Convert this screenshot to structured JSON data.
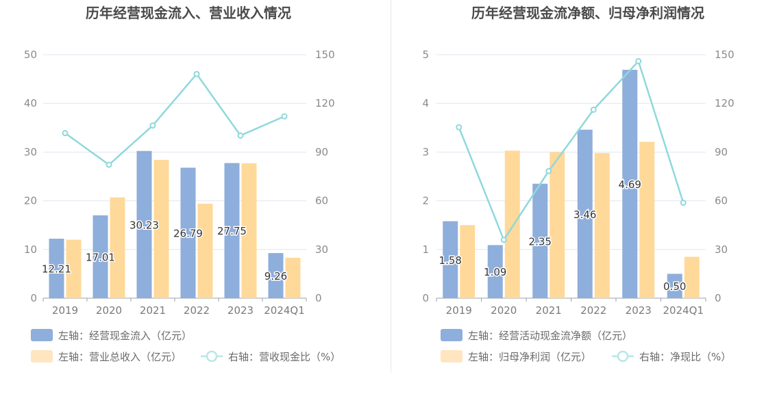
{
  "charts": [
    {
      "title": "历年经营现金流入、营业收入情况",
      "chart_data": {
        "type": "bar",
        "categories": [
          "2019",
          "2020",
          "2021",
          "2022",
          "2023",
          "2024Q1"
        ],
        "series": [
          {
            "name": "左轴：经营现金流入（亿元）",
            "axis": "left",
            "type": "bar",
            "color": "#8eaedb",
            "values": [
              12.21,
              17.01,
              30.23,
              26.79,
              27.75,
              9.26
            ],
            "labels": [
              "12.21",
              "17.01",
              "30.23",
              "26.79",
              "27.75",
              "9.26"
            ]
          },
          {
            "name": "左轴：营业总收入（亿元）",
            "axis": "left",
            "type": "bar",
            "color": "#ffd99a",
            "values": [
              12.0,
              20.7,
              28.4,
              19.4,
              27.7,
              8.3
            ]
          },
          {
            "name": "右轴：营收现金比（%）",
            "axis": "right",
            "type": "line",
            "color": "#8fd8dc",
            "values": [
              101.7,
              82.2,
              106.4,
              138.1,
              100.2,
              112.0
            ]
          }
        ],
        "left_axis": {
          "min": 0,
          "max": 50,
          "ticks": [
            "0",
            "10",
            "20",
            "30",
            "40",
            "50"
          ]
        },
        "right_axis": {
          "min": 0,
          "max": 150,
          "ticks": [
            "0",
            "30",
            "60",
            "90",
            "120",
            "150"
          ]
        },
        "grid": true,
        "legend_position": "bottom-left"
      }
    },
    {
      "title": "历年经营现金流净额、归母净利润情况",
      "chart_data": {
        "type": "bar",
        "categories": [
          "2019",
          "2020",
          "2021",
          "2022",
          "2023",
          "2024Q1"
        ],
        "series": [
          {
            "name": "左轴：经营活动现金流净额（亿元）",
            "axis": "left",
            "type": "bar",
            "color": "#8eaedb",
            "values": [
              1.58,
              1.09,
              2.35,
              3.46,
              4.69,
              0.5
            ],
            "labels": [
              "1.58",
              "1.09",
              "2.35",
              "3.46",
              "4.69",
              "0.50"
            ]
          },
          {
            "name": "左轴：归母净利润（亿元）",
            "axis": "left",
            "type": "bar",
            "color": "#ffd99a",
            "values": [
              1.5,
              3.03,
              3.0,
              2.98,
              3.21,
              0.85
            ]
          },
          {
            "name": "右轴：净现比（%）",
            "axis": "right",
            "type": "line",
            "color": "#8fd8dc",
            "values": [
              105.3,
              35.9,
              78.3,
              116.1,
              146.0,
              58.8
            ]
          }
        ],
        "left_axis": {
          "min": 0,
          "max": 5,
          "ticks": [
            "0",
            "1",
            "2",
            "3",
            "4",
            "5"
          ]
        },
        "right_axis": {
          "min": 0,
          "max": 150,
          "ticks": [
            "0",
            "30",
            "60",
            "90",
            "120",
            "150"
          ]
        },
        "grid": true,
        "legend_position": "bottom-left"
      }
    }
  ]
}
